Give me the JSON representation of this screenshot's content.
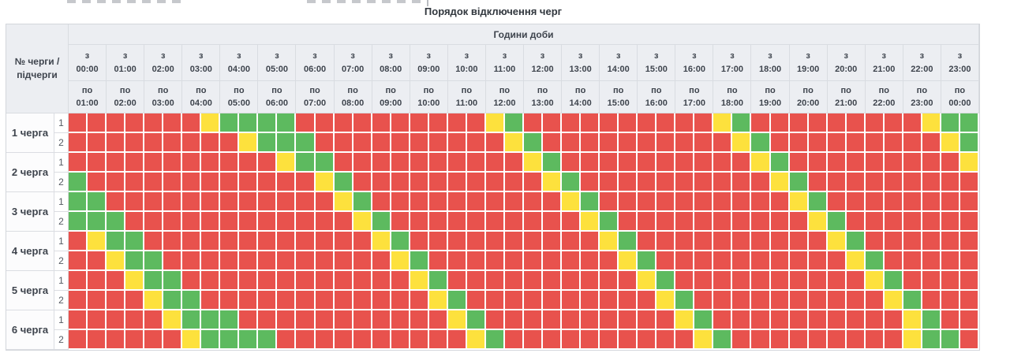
{
  "title": "Порядок відключення черг",
  "header": {
    "hours_title": "Години доби",
    "corner_label": "№ черги / підчерги",
    "from_prefix": "з",
    "to_prefix": "по",
    "columns": [
      {
        "from": "00:00",
        "to": "01:00"
      },
      {
        "from": "01:00",
        "to": "02:00"
      },
      {
        "from": "02:00",
        "to": "03:00"
      },
      {
        "from": "03:00",
        "to": "04:00"
      },
      {
        "from": "04:00",
        "to": "05:00"
      },
      {
        "from": "05:00",
        "to": "06:00"
      },
      {
        "from": "06:00",
        "to": "07:00"
      },
      {
        "from": "07:00",
        "to": "08:00"
      },
      {
        "from": "08:00",
        "to": "09:00"
      },
      {
        "from": "09:00",
        "to": "10:00"
      },
      {
        "from": "10:00",
        "to": "11:00"
      },
      {
        "from": "11:00",
        "to": "12:00"
      },
      {
        "from": "12:00",
        "to": "13:00"
      },
      {
        "from": "13:00",
        "to": "14:00"
      },
      {
        "from": "14:00",
        "to": "15:00"
      },
      {
        "from": "15:00",
        "to": "16:00"
      },
      {
        "from": "16:00",
        "to": "17:00"
      },
      {
        "from": "17:00",
        "to": "18:00"
      },
      {
        "from": "18:00",
        "to": "19:00"
      },
      {
        "from": "19:00",
        "to": "20:00"
      },
      {
        "from": "20:00",
        "to": "21:00"
      },
      {
        "from": "21:00",
        "to": "22:00"
      },
      {
        "from": "22:00",
        "to": "23:00"
      },
      {
        "from": "23:00",
        "to": "00:00"
      }
    ]
  },
  "schedule": {
    "slots_per_row": 48,
    "slot_minutes": 30,
    "colors": {
      "R": "#e8524d",
      "Y": "#fde13d",
      "G": "#5dba5f"
    },
    "queues": [
      {
        "label": "1 черга",
        "subqueues": [
          {
            "label": "1",
            "pattern": "RRRRRRRYGGGGRRRRRRRRRRYGRRRRRRRRRRYGRRRRRRRRRYGG"
          },
          {
            "label": "2",
            "pattern": "RRRRRRRRRYGGGRRRRRRRRRRYGRRRRRRRRRRYGRRRRRRRRRYG"
          }
        ]
      },
      {
        "label": "2 черга",
        "subqueues": [
          {
            "label": "1",
            "pattern": "RRRRRRRRRRRYGGRRRRRRRRRRYGRRRRRRRRRRYGRRRRRRRRRY"
          },
          {
            "label": "2",
            "pattern": "GRRRRRRRRRRRRYGRRRRRRRRRRYGRRRRRRRRRRYGRRRRRRRRR"
          }
        ]
      },
      {
        "label": "3 черга",
        "subqueues": [
          {
            "label": "1",
            "pattern": "GGRRRRRRRRRRRRYGRRRRRRRRRRYGRRRRRRRRRRYGRRRRRRRR"
          },
          {
            "label": "2",
            "pattern": "GGGRRRRRRRRRRRRYGRRRRRRRRRRYGRRRRRRRRRRYGRRRRRRR"
          }
        ]
      },
      {
        "label": "4 черга",
        "subqueues": [
          {
            "label": "1",
            "pattern": "RYGGRRRRRRRRRRRRYGRRRRRRRRRRYGRRRRRRRRRRYGRRRRRR"
          },
          {
            "label": "2",
            "pattern": "RRYGGRRRRRRRRRRRRYGRRRRRRRRRRYGRRRRRRRRRRYGRRRRR"
          }
        ]
      },
      {
        "label": "5 черга",
        "subqueues": [
          {
            "label": "1",
            "pattern": "RRRYGGRRRRRRRRRRRRYGRRRRRRRRRRYGRRRRRRRRRRYGRRRR"
          },
          {
            "label": "2",
            "pattern": "RRRRYGGRRRRRRRRRRRRYGRRRRRRRRRRYGRRRRRRRRRRYGRRR"
          }
        ]
      },
      {
        "label": "6 черга",
        "subqueues": [
          {
            "label": "1",
            "pattern": "RRRRRYGGGRRRRRRRRRRRYGRRRRRRRRRRYGRRRRRRRRRRYGRR"
          },
          {
            "label": "2",
            "pattern": "RRRRRRYGGGGRRRRRRRRRRYGRRRRRRRRRRYGRRRRRRRRRYGGR"
          }
        ]
      }
    ]
  }
}
